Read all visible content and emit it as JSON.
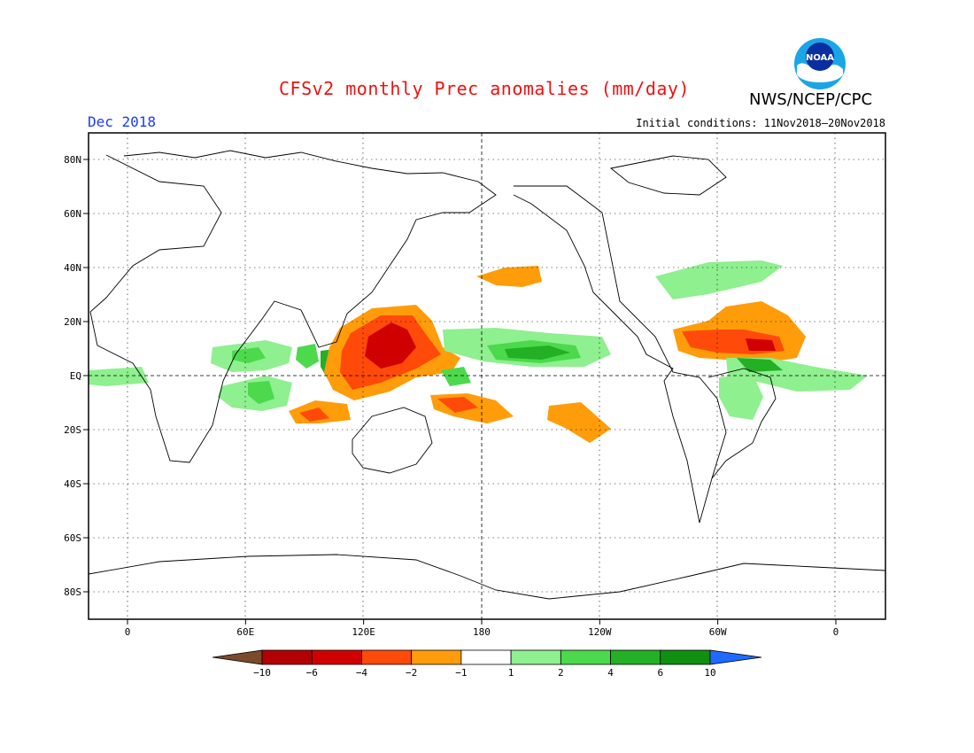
{
  "title": "CFSv2 monthly Prec anomalies (mm/day)",
  "organization": "NWS/NCEP/CPC",
  "logo_text": "NOAA",
  "forecast_month": "Dec 2018",
  "initial_conditions": "Initial conditions: 11Nov2018–20Nov2018",
  "latitude_ticks": [
    {
      "label": "80N",
      "lat": 80
    },
    {
      "label": "60N",
      "lat": 60
    },
    {
      "label": "40N",
      "lat": 40
    },
    {
      "label": "20N",
      "lat": 20
    },
    {
      "label": "EQ",
      "lat": 0
    },
    {
      "label": "20S",
      "lat": -20
    },
    {
      "label": "40S",
      "lat": -40
    },
    {
      "label": "60S",
      "lat": -60
    },
    {
      "label": "80S",
      "lat": -80
    }
  ],
  "longitude_ticks": [
    {
      "label": "0",
      "lon": 0
    },
    {
      "label": "60E",
      "lon": 60
    },
    {
      "label": "120E",
      "lon": 120
    },
    {
      "label": "180",
      "lon": 180
    },
    {
      "label": "120W",
      "lon": 240
    },
    {
      "label": "60W",
      "lon": 300
    },
    {
      "label": "0",
      "lon": 360
    }
  ],
  "colorbar": {
    "labels": [
      "−10",
      "−6",
      "−4",
      "−2",
      "−1",
      "1",
      "2",
      "4",
      "6",
      "10"
    ],
    "colors": [
      "#7a4a2a",
      "#b30000",
      "#d10000",
      "#ff4a0a",
      "#ff9c0a",
      "#ffffff",
      "#8ef08e",
      "#4cd94c",
      "#24b024",
      "#109010",
      "#1e6cff"
    ]
  },
  "colors": {
    "title": "#ee1111",
    "month": "#1a3aff",
    "dry_light": "#ff9c0a",
    "dry_mid": "#ff4a0a",
    "dry_strong": "#d10000",
    "wet_light": "#8ef08e",
    "wet_mid": "#4cd94c",
    "wet_strong": "#24b024",
    "wet_max": "#109010"
  }
}
